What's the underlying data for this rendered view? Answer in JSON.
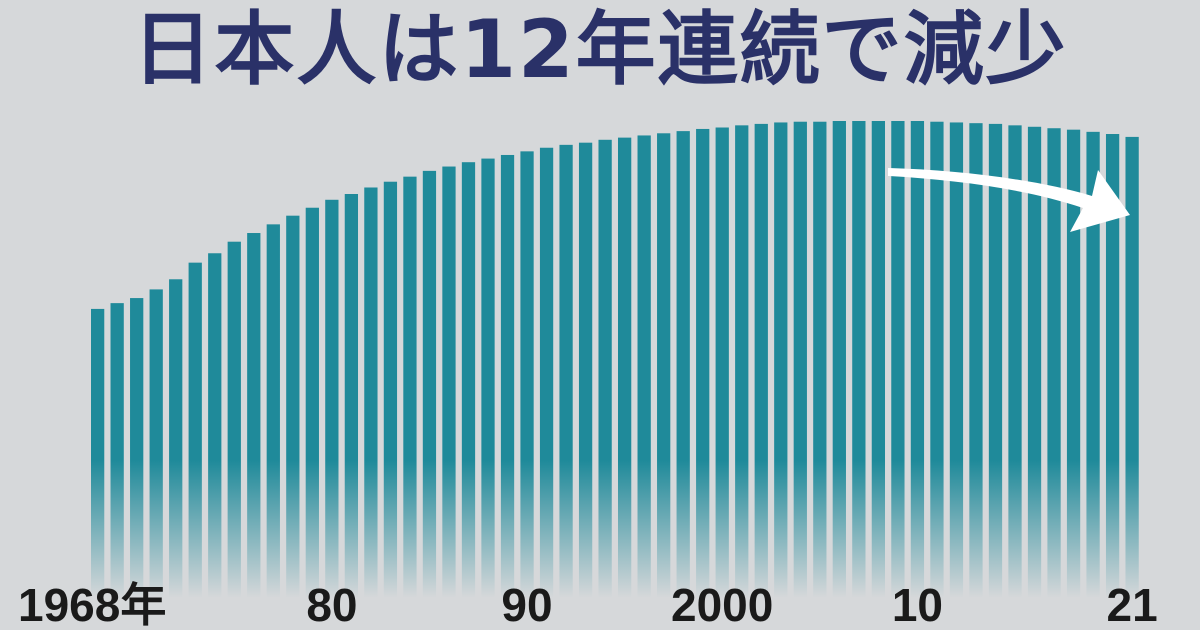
{
  "chart_data": {
    "type": "bar",
    "title": "日本人は12年連続で減少",
    "xlabel": "",
    "ylabel": "",
    "grid": false,
    "legend": "none",
    "bar_color": "#1f8a9a",
    "arrow_color": "#ffffff",
    "categories": [
      1968,
      1969,
      1970,
      1971,
      1972,
      1973,
      1974,
      1975,
      1976,
      1977,
      1978,
      1979,
      1980,
      1981,
      1982,
      1983,
      1984,
      1985,
      1986,
      1987,
      1988,
      1989,
      1990,
      1991,
      1992,
      1993,
      1994,
      1995,
      1996,
      1997,
      1998,
      1999,
      2000,
      2001,
      2002,
      2003,
      2004,
      2005,
      2006,
      2007,
      2008,
      2009,
      2010,
      2011,
      2012,
      2013,
      2014,
      2015,
      2016,
      2017,
      2018,
      2019,
      2020,
      2021
    ],
    "values": [
      100.0,
      100.8,
      101.5,
      102.7,
      104.1,
      106.4,
      107.7,
      109.3,
      110.5,
      111.7,
      112.9,
      114.0,
      115.1,
      115.9,
      116.8,
      117.6,
      118.3,
      119.1,
      119.7,
      120.3,
      120.8,
      121.3,
      121.8,
      122.3,
      122.7,
      123.0,
      123.4,
      123.7,
      124.0,
      124.3,
      124.6,
      124.9,
      125.1,
      125.4,
      125.6,
      125.8,
      125.9,
      125.9,
      126.0,
      126.0,
      126.0,
      126.0,
      126.0,
      125.9,
      125.8,
      125.7,
      125.6,
      125.4,
      125.2,
      125.0,
      124.8,
      124.5,
      124.2,
      123.8
    ],
    "ylim": [
      60,
      126
    ],
    "tick_labels": [
      {
        "year": 1968,
        "text": "1968年"
      },
      {
        "year": 1980,
        "text": "80"
      },
      {
        "year": 1990,
        "text": "90"
      },
      {
        "year": 2000,
        "text": "2000"
      },
      {
        "year": 2010,
        "text": "10"
      },
      {
        "year": 2021,
        "text": "21"
      }
    ]
  }
}
